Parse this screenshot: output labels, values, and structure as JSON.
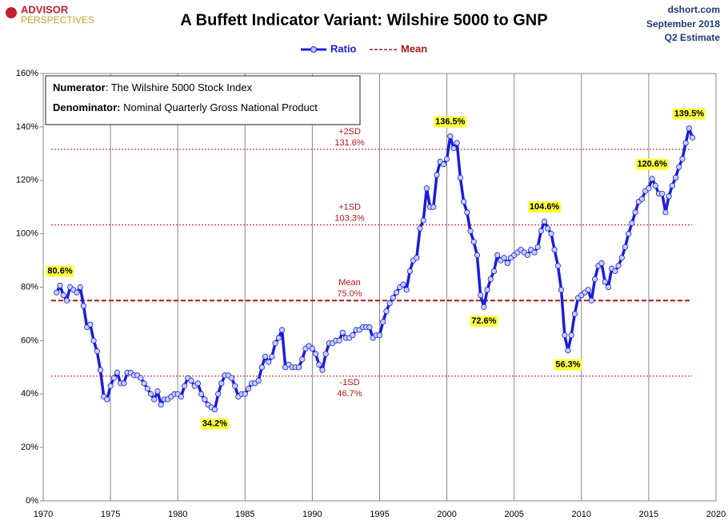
{
  "header": {
    "logo_top": "ADVISOR",
    "logo_bottom": "PERSPECTIVES",
    "source": "dshort.com",
    "date": "September 2018",
    "note": "Q2 Estimate"
  },
  "text_box": [
    {
      "label": "Numerator",
      "text": ": The Wilshire 5000 Stock Index"
    },
    {
      "label": "Denominator:",
      "text": " Nominal Quarterly Gross National Product"
    }
  ],
  "chart_data": {
    "type": "line",
    "title": "A Buffett Indicator Variant: Wilshire 5000 to GNP",
    "x": [
      1971,
      1971.25,
      1971.5,
      1971.75,
      1972,
      1972.25,
      1972.5,
      1972.75,
      1973,
      1973.25,
      1973.5,
      1973.75,
      1974,
      1974.25,
      1974.5,
      1974.75,
      1975,
      1975.25,
      1975.5,
      1975.75,
      1976,
      1976.25,
      1976.5,
      1976.75,
      1977,
      1977.25,
      1977.5,
      1977.75,
      1978,
      1978.25,
      1978.5,
      1978.75,
      1979,
      1979.25,
      1979.5,
      1979.75,
      1980,
      1980.25,
      1980.5,
      1980.75,
      1981,
      1981.25,
      1981.5,
      1981.75,
      1982,
      1982.25,
      1982.5,
      1982.75,
      1983,
      1983.25,
      1983.5,
      1983.75,
      1984,
      1984.25,
      1984.5,
      1984.75,
      1985,
      1985.25,
      1985.5,
      1985.75,
      1986,
      1986.25,
      1986.5,
      1986.75,
      1987,
      1987.25,
      1987.5,
      1987.75,
      1988,
      1988.25,
      1988.5,
      1988.75,
      1989,
      1989.25,
      1989.5,
      1989.75,
      1990,
      1990.25,
      1990.5,
      1990.75,
      1991,
      1991.25,
      1991.5,
      1991.75,
      1992,
      1992.25,
      1992.5,
      1992.75,
      1993,
      1993.25,
      1993.5,
      1993.75,
      1994,
      1994.25,
      1994.5,
      1994.75,
      1995,
      1995.25,
      1995.5,
      1995.75,
      1996,
      1996.25,
      1996.5,
      1996.75,
      1997,
      1997.25,
      1997.5,
      1997.75,
      1998,
      1998.25,
      1998.5,
      1998.75,
      1999,
      1999.25,
      1999.5,
      1999.75,
      2000,
      2000.25,
      2000.5,
      2000.75,
      2001,
      2001.25,
      2001.5,
      2001.75,
      2002,
      2002.25,
      2002.5,
      2002.75,
      2003,
      2003.25,
      2003.5,
      2003.75,
      2004,
      2004.25,
      2004.5,
      2004.75,
      2005,
      2005.25,
      2005.5,
      2005.75,
      2006,
      2006.25,
      2006.5,
      2006.75,
      2007,
      2007.25,
      2007.5,
      2007.75,
      2008,
      2008.25,
      2008.5,
      2008.75,
      2009,
      2009.25,
      2009.5,
      2009.75,
      2010,
      2010.25,
      2010.5,
      2010.75,
      2011,
      2011.25,
      2011.5,
      2011.75,
      2012,
      2012.25,
      2012.5,
      2012.75,
      2013,
      2013.25,
      2013.5,
      2013.75,
      2014,
      2014.25,
      2014.5,
      2014.75,
      2015,
      2015.25,
      2015.5,
      2015.75,
      2016,
      2016.25,
      2016.5,
      2016.75,
      2017,
      2017.25,
      2017.5,
      2017.75,
      2018,
      2018.25
    ],
    "series": [
      {
        "name": "Ratio",
        "color": "#1c1cdc",
        "values": [
          78,
          80.6,
          77,
          75,
          80,
          79,
          78,
          80,
          73,
          65,
          66,
          60,
          56,
          49,
          39,
          38,
          43,
          46,
          48,
          44,
          44,
          48,
          48,
          47,
          47,
          46,
          44,
          42,
          40,
          38,
          41,
          36,
          38,
          38,
          39,
          40,
          40,
          39,
          43,
          46,
          45,
          43,
          44,
          40,
          38,
          36,
          35,
          34.2,
          40,
          44,
          47,
          47,
          46,
          43,
          39,
          40,
          40,
          42,
          44,
          44,
          45,
          50,
          54,
          52,
          54,
          59,
          61,
          64,
          50,
          51,
          50,
          50,
          50,
          53,
          57,
          58,
          57,
          55,
          51,
          49,
          55,
          59,
          59,
          60,
          60,
          63,
          61,
          61,
          62,
          64,
          64,
          65,
          65,
          65,
          61,
          62,
          62,
          67,
          71,
          74,
          76,
          78,
          80,
          81,
          79,
          86,
          90,
          91,
          102,
          105,
          117,
          110,
          110,
          122,
          127,
          126,
          128,
          136.5,
          132,
          134,
          121,
          112,
          108,
          101,
          97,
          92,
          77,
          72.6,
          79,
          83,
          86,
          92,
          90,
          91,
          89,
          91,
          92,
          93,
          94,
          93,
          92,
          94,
          93,
          95,
          101,
          104.6,
          102,
          100,
          94,
          88,
          79,
          62,
          56.3,
          62,
          70,
          76,
          77,
          78,
          79,
          75,
          83,
          88,
          89,
          82,
          80,
          87,
          86,
          88,
          91,
          95,
          100,
          104,
          108,
          112,
          113,
          116,
          117,
          120.6,
          118,
          115,
          115,
          108,
          114,
          118,
          121,
          125,
          128,
          134,
          139.5,
          136
        ]
      }
    ],
    "annotations": [
      {
        "x": 1971.25,
        "y": 80.6,
        "label": "80.6%"
      },
      {
        "x": 1982.75,
        "y": 34.2,
        "label": "34.2%"
      },
      {
        "x": 2000.25,
        "y": 136.5,
        "label": "136.5%"
      },
      {
        "x": 2002.75,
        "y": 72.6,
        "label": "72.6%"
      },
      {
        "x": 2007.25,
        "y": 104.6,
        "label": "104.6%"
      },
      {
        "x": 2009,
        "y": 56.3,
        "label": "56.3%"
      },
      {
        "x": 2015.25,
        "y": 120.6,
        "label": "120.6%"
      },
      {
        "x": 2018,
        "y": 139.5,
        "label": "139.5%"
      }
    ],
    "reference_lines": [
      {
        "name": "+2SD",
        "value": 131.6,
        "label": "131.6%"
      },
      {
        "name": "+1SD",
        "value": 103.3,
        "label": "103.3%"
      },
      {
        "name": "Mean",
        "value": 75.0,
        "label": "75.0%"
      },
      {
        "name": "-1SD",
        "value": 46.7,
        "label": "46.7%"
      }
    ],
    "reference_color": "#b01818",
    "xlim": [
      1970,
      2020
    ],
    "xticks": [
      1970,
      1975,
      1980,
      1985,
      1990,
      1995,
      2000,
      2005,
      2010,
      2015,
      2020
    ],
    "ylim": [
      0,
      160
    ],
    "yticks": [
      {
        "value": 0,
        "label": "0%"
      },
      {
        "value": 20,
        "label": "20%"
      },
      {
        "value": 40,
        "label": "40%"
      },
      {
        "value": 60,
        "label": "60%"
      },
      {
        "value": 80,
        "label": "80%"
      },
      {
        "value": 100,
        "label": "100%"
      },
      {
        "value": 120,
        "label": "120%"
      },
      {
        "value": 140,
        "label": "140%"
      },
      {
        "value": 160,
        "label": "160%"
      }
    ],
    "grid": "x"
  }
}
